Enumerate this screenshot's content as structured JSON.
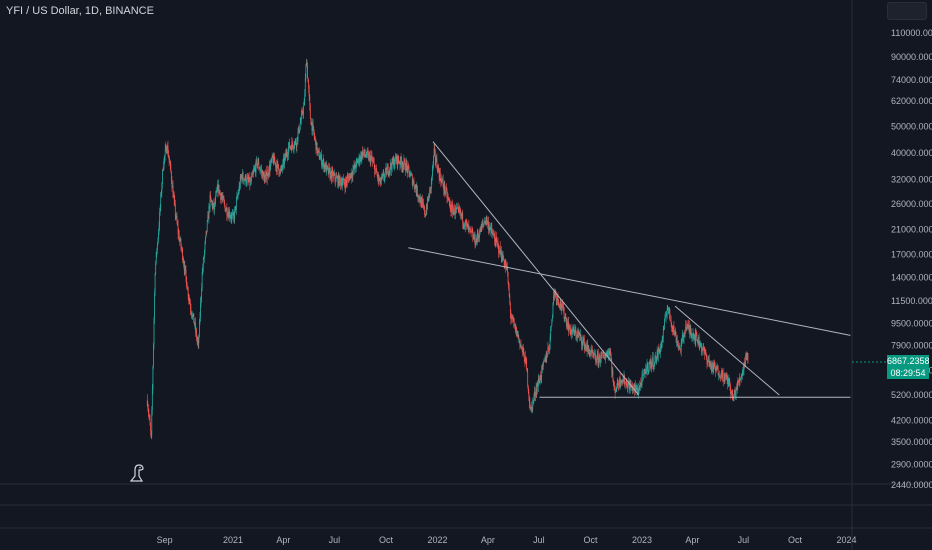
{
  "header": {
    "symbol": "YFI / US Dollar",
    "interval": "1D",
    "exchange": "BINANCE"
  },
  "price_tag": {
    "price": "6867.2358",
    "countdown": "08:29:54"
  },
  "icons": {
    "watermark": "dino-icon",
    "scale": "settings-box-icon"
  },
  "colors": {
    "background": "#131722",
    "up": "#26a69a",
    "down": "#ef5350",
    "line": "#b2b5be",
    "grid": "#2a2e39",
    "tag": "#089981"
  },
  "chart_data": {
    "type": "candlestick",
    "title": "YFI / US Dollar, 1D, BINANCE",
    "xlabel": "",
    "ylabel": "",
    "y_scale": "log",
    "ylim": [
      2200,
      150000
    ],
    "x_ticks": [
      "Sep",
      "2021",
      "Apr",
      "Jul",
      "Oct",
      "2022",
      "Apr",
      "Jul",
      "Oct",
      "2023",
      "Apr",
      "Jul",
      "Oct",
      "2024"
    ],
    "y_ticks": [
      "110000.0000",
      "90000.0000",
      "74000.0000",
      "62000.0000",
      "50000.0000",
      "40000.0000",
      "32000.0000",
      "26000.0000",
      "21000.0000",
      "17000.0000",
      "14000.0000",
      "11500.0000",
      "9500.0000",
      "7900.0000",
      "6400.0000",
      "5200.0000",
      "4200.0000",
      "3500.0000",
      "2900.0000",
      "2440.0000"
    ],
    "price_path": [
      [
        "2020-08-01",
        5000
      ],
      [
        "2020-08-08",
        3600
      ],
      [
        "2020-08-15",
        15000
      ],
      [
        "2020-08-22",
        22000
      ],
      [
        "2020-08-29",
        36000
      ],
      [
        "2020-09-05",
        43000
      ],
      [
        "2020-09-12",
        34000
      ],
      [
        "2020-09-19",
        25000
      ],
      [
        "2020-09-26",
        20000
      ],
      [
        "2020-10-03",
        17000
      ],
      [
        "2020-10-10",
        13500
      ],
      [
        "2020-10-17",
        11000
      ],
      [
        "2020-10-24",
        9500
      ],
      [
        "2020-10-31",
        7800
      ],
      [
        "2020-11-07",
        14500
      ],
      [
        "2020-11-14",
        20000
      ],
      [
        "2020-11-21",
        27000
      ],
      [
        "2020-11-28",
        25000
      ],
      [
        "2020-12-05",
        30000
      ],
      [
        "2020-12-19",
        25000
      ],
      [
        "2021-01-02",
        23000
      ],
      [
        "2021-01-16",
        33000
      ],
      [
        "2021-02-01",
        31000
      ],
      [
        "2021-02-13",
        37000
      ],
      [
        "2021-02-27",
        32000
      ],
      [
        "2021-03-13",
        38000
      ],
      [
        "2021-03-27",
        34000
      ],
      [
        "2021-04-10",
        42000
      ],
      [
        "2021-04-24",
        44000
      ],
      [
        "2021-05-08",
        60000
      ],
      [
        "2021-05-12",
        90000
      ],
      [
        "2021-05-19",
        54000
      ],
      [
        "2021-06-01",
        40000
      ],
      [
        "2021-06-20",
        34000
      ],
      [
        "2021-07-05",
        32000
      ],
      [
        "2021-07-20",
        31000
      ],
      [
        "2021-08-05",
        35000
      ],
      [
        "2021-08-20",
        40000
      ],
      [
        "2021-09-05",
        38000
      ],
      [
        "2021-09-20",
        31000
      ],
      [
        "2021-10-05",
        35000
      ],
      [
        "2021-10-20",
        38000
      ],
      [
        "2021-11-05",
        36000
      ],
      [
        "2021-11-20",
        31000
      ],
      [
        "2021-12-01",
        27000
      ],
      [
        "2021-12-10",
        24000
      ],
      [
        "2021-12-20",
        30000
      ],
      [
        "2021-12-26",
        40000
      ],
      [
        "2022-01-05",
        33000
      ],
      [
        "2022-01-15",
        29000
      ],
      [
        "2022-01-25",
        25000
      ],
      [
        "2022-02-10",
        24000
      ],
      [
        "2022-02-25",
        21000
      ],
      [
        "2022-03-10",
        19000
      ],
      [
        "2022-03-28",
        23000
      ],
      [
        "2022-04-10",
        20000
      ],
      [
        "2022-04-25",
        17000
      ],
      [
        "2022-05-05",
        15000
      ],
      [
        "2022-05-12",
        10000
      ],
      [
        "2022-05-25",
        8500
      ],
      [
        "2022-06-08",
        6800
      ],
      [
        "2022-06-16",
        4500
      ],
      [
        "2022-06-25",
        5400
      ],
      [
        "2022-07-05",
        6200
      ],
      [
        "2022-07-20",
        8000
      ],
      [
        "2022-07-28",
        12500
      ],
      [
        "2022-08-10",
        11000
      ],
      [
        "2022-08-25",
        9000
      ],
      [
        "2022-09-10",
        8600
      ],
      [
        "2022-09-25",
        7700
      ],
      [
        "2022-10-10",
        7000
      ],
      [
        "2022-10-25",
        7200
      ],
      [
        "2022-11-05",
        7600
      ],
      [
        "2022-11-12",
        5400
      ],
      [
        "2022-11-25",
        6000
      ],
      [
        "2022-12-10",
        5600
      ],
      [
        "2022-12-25",
        5400
      ],
      [
        "2023-01-10",
        6600
      ],
      [
        "2023-01-25",
        7000
      ],
      [
        "2023-02-05",
        8000
      ],
      [
        "2023-02-15",
        11000
      ],
      [
        "2023-02-25",
        9200
      ],
      [
        "2023-03-10",
        7600
      ],
      [
        "2023-03-20",
        9300
      ],
      [
        "2023-04-05",
        8600
      ],
      [
        "2023-04-15",
        8000
      ],
      [
        "2023-04-25",
        7200
      ],
      [
        "2023-05-05",
        6600
      ],
      [
        "2023-05-20",
        6300
      ],
      [
        "2023-06-05",
        5800
      ],
      [
        "2023-06-12",
        5000
      ],
      [
        "2023-06-20",
        5600
      ],
      [
        "2023-06-30",
        6400
      ],
      [
        "2023-07-06",
        7400
      ],
      [
        "2023-07-10",
        6867
      ]
    ],
    "trendlines": [
      {
        "from": [
          "2021-11-10",
          18000
        ],
        "to": [
          "2024-01-08",
          8600
        ]
      },
      {
        "from": [
          "2021-12-24",
          44000
        ],
        "to": [
          "2022-12-26",
          5200
        ]
      },
      {
        "from": [
          "2023-03-01",
          11000
        ],
        "to": [
          "2023-09-03",
          5200
        ]
      },
      {
        "from": [
          "2022-07-02",
          5100
        ],
        "to": [
          "2024-01-08",
          5100
        ]
      }
    ],
    "last_price": 6867.2358
  }
}
